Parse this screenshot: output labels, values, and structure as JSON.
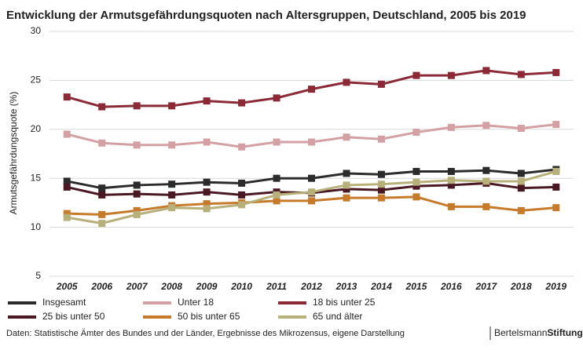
{
  "chart_data": {
    "type": "line",
    "title": "Entwicklung der Armutsgefährdungsquoten nach Altersgruppen, Deutschland, 2005 bis 2019",
    "y_label": "Armutsgefährdungsquote (%)",
    "categories": [
      "2005",
      "2006",
      "2007",
      "2008",
      "2009",
      "2010",
      "2011",
      "2012",
      "2013",
      "2014",
      "2015",
      "2016",
      "2017",
      "2018",
      "2019"
    ],
    "ylim": [
      5,
      30
    ],
    "yticks": [
      5,
      10,
      15,
      20,
      25,
      30
    ],
    "grid": true,
    "series": [
      {
        "name": "Insgesamt",
        "color": "#2b2b2b",
        "values": [
          14.7,
          14.0,
          14.3,
          14.4,
          14.6,
          14.5,
          15.0,
          15.0,
          15.5,
          15.4,
          15.7,
          15.7,
          15.8,
          15.5,
          15.9
        ]
      },
      {
        "name": "Unter 18",
        "color": "#d4a0a4",
        "values": [
          19.5,
          18.6,
          18.4,
          18.4,
          18.7,
          18.2,
          18.7,
          18.7,
          19.2,
          19.0,
          19.7,
          20.2,
          20.4,
          20.1,
          20.5
        ]
      },
      {
        "name": "18 bis unter 25",
        "color": "#8b2a36",
        "values": [
          23.3,
          22.3,
          22.4,
          22.4,
          22.9,
          22.7,
          23.2,
          24.1,
          24.8,
          24.6,
          25.5,
          25.5,
          26.0,
          25.6,
          25.8
        ]
      },
      {
        "name": "25 bis unter 50",
        "color": "#4a1822",
        "values": [
          14.1,
          13.3,
          13.4,
          13.3,
          13.6,
          13.3,
          13.6,
          13.5,
          13.9,
          13.8,
          14.2,
          14.3,
          14.5,
          14.0,
          14.1
        ]
      },
      {
        "name": "50 bis unter 65",
        "color": "#c77a2a",
        "values": [
          11.4,
          11.3,
          11.7,
          12.2,
          12.4,
          12.5,
          12.7,
          12.7,
          13.0,
          13.0,
          13.1,
          12.1,
          12.1,
          11.7,
          12.0
        ]
      },
      {
        "name": "65 und älter",
        "color": "#b8b07a",
        "values": [
          11.0,
          10.4,
          11.3,
          12.0,
          11.9,
          12.3,
          13.3,
          13.6,
          14.3,
          14.4,
          14.6,
          14.8,
          14.7,
          14.7,
          15.7
        ]
      }
    ],
    "source": "Daten: Statistische Ämter des Bundes und der Länder, Ergebnisse des Mikrozensus, eigene Darstellung",
    "brand": [
      "Bertelsmann",
      "Stiftung"
    ]
  }
}
